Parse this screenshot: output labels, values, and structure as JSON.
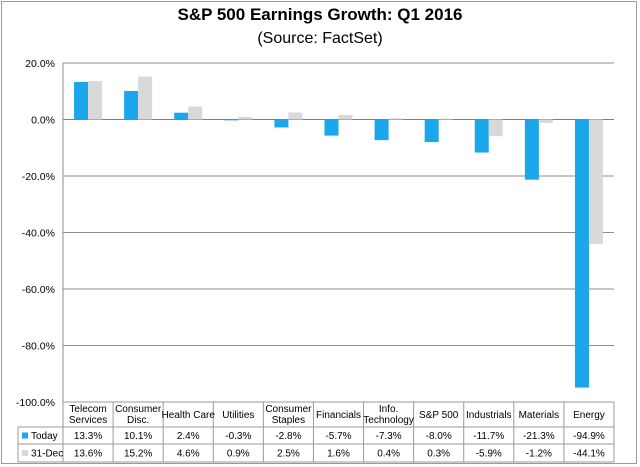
{
  "chart_data": {
    "type": "bar",
    "title": "S&P 500 Earnings Growth: Q1 2016",
    "subtitle": "(Source: FactSet)",
    "ylim": [
      -100,
      20
    ],
    "yticks": [
      "20.0%",
      "0.0%",
      "-20.0%",
      "-40.0%",
      "-60.0%",
      "-80.0%",
      "-100.0%"
    ],
    "grid": true,
    "legend": "data-table-below",
    "categories": [
      [
        "Telecom",
        "Services"
      ],
      [
        "Consumer",
        "Disc."
      ],
      [
        "Health Care"
      ],
      [
        "Utilities"
      ],
      [
        "Consumer",
        "Staples"
      ],
      [
        "Financials"
      ],
      [
        "Info.",
        "Technology"
      ],
      [
        "S&P 500"
      ],
      [
        "Industrials"
      ],
      [
        "Materials"
      ],
      [
        "Energy"
      ]
    ],
    "series": [
      {
        "name": "Today",
        "color": "#1aa7ec",
        "values": [
          13.3,
          10.1,
          2.4,
          -0.3,
          -2.8,
          -5.7,
          -7.3,
          -8.0,
          -11.7,
          -21.3,
          -94.9
        ],
        "labels": [
          "13.3%",
          "10.1%",
          "2.4%",
          "-0.3%",
          "-2.8%",
          "-5.7%",
          "-7.3%",
          "-8.0%",
          "-11.7%",
          "-21.3%",
          "-94.9%"
        ]
      },
      {
        "name": "31-Dec",
        "color": "#d9d9d9",
        "values": [
          13.6,
          15.2,
          4.6,
          0.9,
          2.5,
          1.6,
          0.4,
          0.3,
          -5.9,
          -1.2,
          -44.1
        ],
        "labels": [
          "13.6%",
          "15.2%",
          "4.6%",
          "0.9%",
          "2.5%",
          "1.6%",
          "0.4%",
          "0.3%",
          "-5.9%",
          "-1.2%",
          "-44.1%"
        ]
      }
    ]
  }
}
